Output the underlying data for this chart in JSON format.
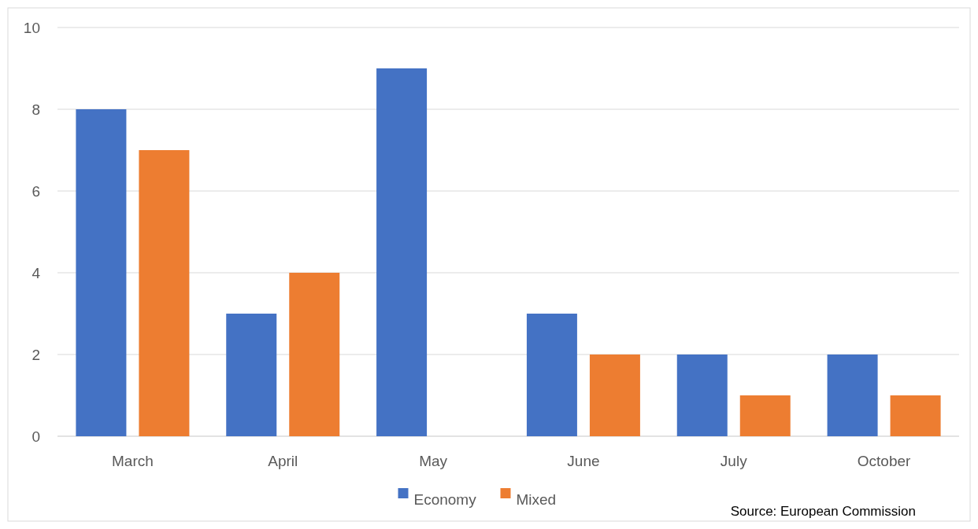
{
  "chart_data": {
    "type": "bar",
    "categories": [
      "March",
      "April",
      "May",
      "June",
      "July",
      "October"
    ],
    "series": [
      {
        "name": "Economy",
        "color": "#4472c4",
        "values": [
          8,
          3,
          9,
          3,
          2,
          2
        ]
      },
      {
        "name": "Mixed",
        "color": "#ed7d31",
        "values": [
          7,
          4,
          0,
          2,
          1,
          1
        ]
      }
    ],
    "ylim": [
      0,
      10
    ],
    "yticks": [
      0,
      2,
      4,
      6,
      8,
      10
    ],
    "grid": "y",
    "legend": "bottom",
    "annotations": [
      "Source: European Commission"
    ]
  }
}
